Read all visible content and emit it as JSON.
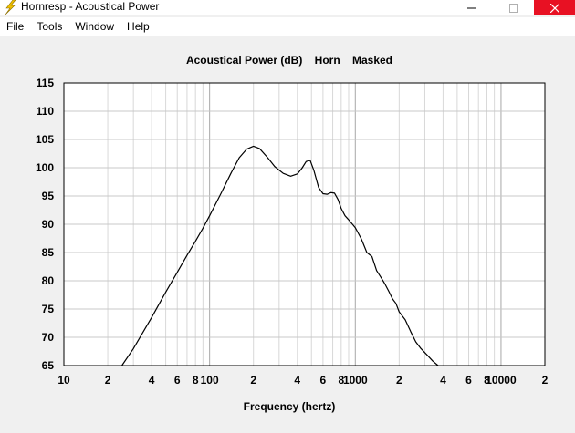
{
  "window": {
    "title": "Hornresp - Acoustical Power",
    "icon": "lightning-bolt-icon",
    "controls": {
      "minimize": "minimize-icon",
      "maximize": "maximize-icon",
      "close": "close-icon"
    },
    "close_color": "#e81123"
  },
  "menu": {
    "items": [
      {
        "label": "File"
      },
      {
        "label": "Tools"
      },
      {
        "label": "Window"
      },
      {
        "label": "Help"
      }
    ]
  },
  "chart_data": {
    "type": "line",
    "title": "Acoustical Power (dB)    Horn    Masked",
    "xlabel": "Frequency (hertz)",
    "ylabel": "",
    "xscale": "log",
    "xlim": [
      10,
      20000
    ],
    "ylim": [
      65,
      115
    ],
    "grid": true,
    "line_color": "#000000",
    "x_tick_labels": [
      {
        "x": 10,
        "label": "10"
      },
      {
        "x": 20,
        "label": "2"
      },
      {
        "x": 40,
        "label": "4"
      },
      {
        "x": 60,
        "label": "6"
      },
      {
        "x": 80,
        "label": "8"
      },
      {
        "x": 100,
        "label": "100"
      },
      {
        "x": 200,
        "label": "2"
      },
      {
        "x": 400,
        "label": "4"
      },
      {
        "x": 600,
        "label": "6"
      },
      {
        "x": 800,
        "label": "8"
      },
      {
        "x": 1000,
        "label": "1000"
      },
      {
        "x": 2000,
        "label": "2"
      },
      {
        "x": 4000,
        "label": "4"
      },
      {
        "x": 6000,
        "label": "6"
      },
      {
        "x": 8000,
        "label": "8"
      },
      {
        "x": 10000,
        "label": "10000"
      },
      {
        "x": 20000,
        "label": "2"
      }
    ],
    "y_ticks": [
      65,
      70,
      75,
      80,
      85,
      90,
      95,
      100,
      105,
      110,
      115
    ],
    "series": [
      {
        "points": [
          [
            25,
            65
          ],
          [
            30,
            68
          ],
          [
            40,
            73.5
          ],
          [
            50,
            78
          ],
          [
            60,
            81.5
          ],
          [
            70,
            84.5
          ],
          [
            80,
            87
          ],
          [
            90,
            89.3
          ],
          [
            100,
            91.5
          ],
          [
            120,
            95.5
          ],
          [
            140,
            99
          ],
          [
            160,
            101.8
          ],
          [
            180,
            103.3
          ],
          [
            200,
            103.8
          ],
          [
            220,
            103.4
          ],
          [
            250,
            101.8
          ],
          [
            280,
            100.2
          ],
          [
            320,
            99
          ],
          [
            360,
            98.5
          ],
          [
            400,
            98.9
          ],
          [
            430,
            99.9
          ],
          [
            460,
            101.1
          ],
          [
            490,
            101.3
          ],
          [
            520,
            99.5
          ],
          [
            560,
            96.5
          ],
          [
            600,
            95.4
          ],
          [
            640,
            95.3
          ],
          [
            680,
            95.6
          ],
          [
            720,
            95.5
          ],
          [
            760,
            94.4
          ],
          [
            800,
            92.8
          ],
          [
            850,
            91.5
          ],
          [
            900,
            90.8
          ],
          [
            1000,
            89.4
          ],
          [
            1100,
            87.4
          ],
          [
            1200,
            85
          ],
          [
            1300,
            84.3
          ],
          [
            1400,
            81.8
          ],
          [
            1500,
            80.6
          ],
          [
            1600,
            79.4
          ],
          [
            1700,
            78.1
          ],
          [
            1800,
            76.8
          ],
          [
            1900,
            76
          ],
          [
            2000,
            74.5
          ],
          [
            2200,
            73.1
          ],
          [
            2400,
            71
          ],
          [
            2600,
            69.2
          ],
          [
            2800,
            68.1
          ],
          [
            3100,
            66.9
          ],
          [
            3400,
            65.8
          ],
          [
            3700,
            65
          ]
        ]
      }
    ]
  }
}
